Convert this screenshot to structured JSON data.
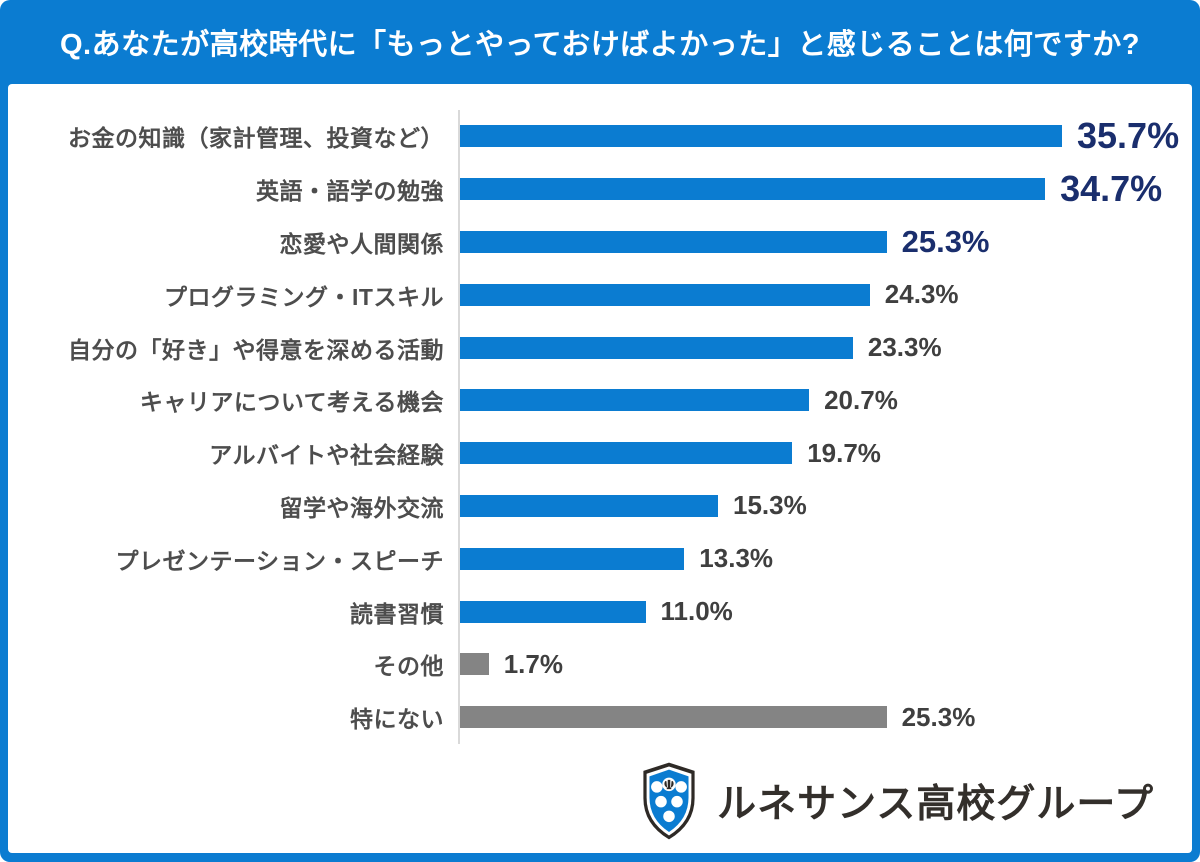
{
  "header": {
    "title": "Q.あなたが高校時代に「もっとやっておけばよかった」と感じることは何ですか?"
  },
  "colors": {
    "background_blue": "#0b7cd1",
    "bar_blue": "#0b7cd1",
    "bar_gray": "#848484",
    "value_navy": "#1a2e6d",
    "value_dark": "#3f3f3f",
    "label_gray": "#4d4d4d",
    "axis_line": "#d9d9d9"
  },
  "chart_data": {
    "type": "bar",
    "orientation": "horizontal",
    "title": "Q.あなたが高校時代に「もっとやっておけばよかった」と感じることは何ですか?",
    "xlabel": "",
    "ylabel": "",
    "xlim": [
      0,
      40
    ],
    "grid": false,
    "categories": [
      "お金の知識（家計管理、投資など）",
      "英語・語学の勉強",
      "恋愛や人間関係",
      "プログラミング・ITスキル",
      "自分の「好き」や得意を深める活動",
      "キャリアについて考える機会",
      "アルバイトや社会経験",
      "留学や海外交流",
      "プレゼンテーション・スピーチ",
      "読書習慣",
      "その他",
      "特にない"
    ],
    "values": [
      35.7,
      34.7,
      25.3,
      24.3,
      23.3,
      20.7,
      19.7,
      15.3,
      13.3,
      11.0,
      1.7,
      25.3
    ],
    "rows": [
      {
        "label": "お金の知識（家計管理、投資など）",
        "value": 35.7,
        "display": "35.7%",
        "color": "blue",
        "emphasis": "xl"
      },
      {
        "label": "英語・語学の勉強",
        "value": 34.7,
        "display": "34.7%",
        "color": "blue",
        "emphasis": "xl"
      },
      {
        "label": "恋愛や人間関係",
        "value": 25.3,
        "display": "25.3%",
        "color": "blue",
        "emphasis": "lg"
      },
      {
        "label": "プログラミング・ITスキル",
        "value": 24.3,
        "display": "24.3%",
        "color": "blue",
        "emphasis": "md"
      },
      {
        "label": "自分の「好き」や得意を深める活動",
        "value": 23.3,
        "display": "23.3%",
        "color": "blue",
        "emphasis": "md"
      },
      {
        "label": "キャリアについて考える機会",
        "value": 20.7,
        "display": "20.7%",
        "color": "blue",
        "emphasis": "md"
      },
      {
        "label": "アルバイトや社会経験",
        "value": 19.7,
        "display": "19.7%",
        "color": "blue",
        "emphasis": "md"
      },
      {
        "label": "留学や海外交流",
        "value": 15.3,
        "display": "15.3%",
        "color": "blue",
        "emphasis": "md"
      },
      {
        "label": "プレゼンテーション・スピーチ",
        "value": 13.3,
        "display": "13.3%",
        "color": "blue",
        "emphasis": "md"
      },
      {
        "label": "読書習慣",
        "value": 11.0,
        "display": "11.0%",
        "color": "blue",
        "emphasis": "md"
      },
      {
        "label": "その他",
        "value": 1.7,
        "display": "1.7%",
        "color": "gray",
        "emphasis": "md"
      },
      {
        "label": "特にない",
        "value": 25.3,
        "display": "25.3%",
        "color": "gray",
        "emphasis": "md"
      }
    ]
  },
  "logo": {
    "text": "ルネサンス高校グループ",
    "icon": "shield-crest-icon",
    "shield_blue": "#0b7cd1",
    "shield_outline": "#2e2a26"
  }
}
